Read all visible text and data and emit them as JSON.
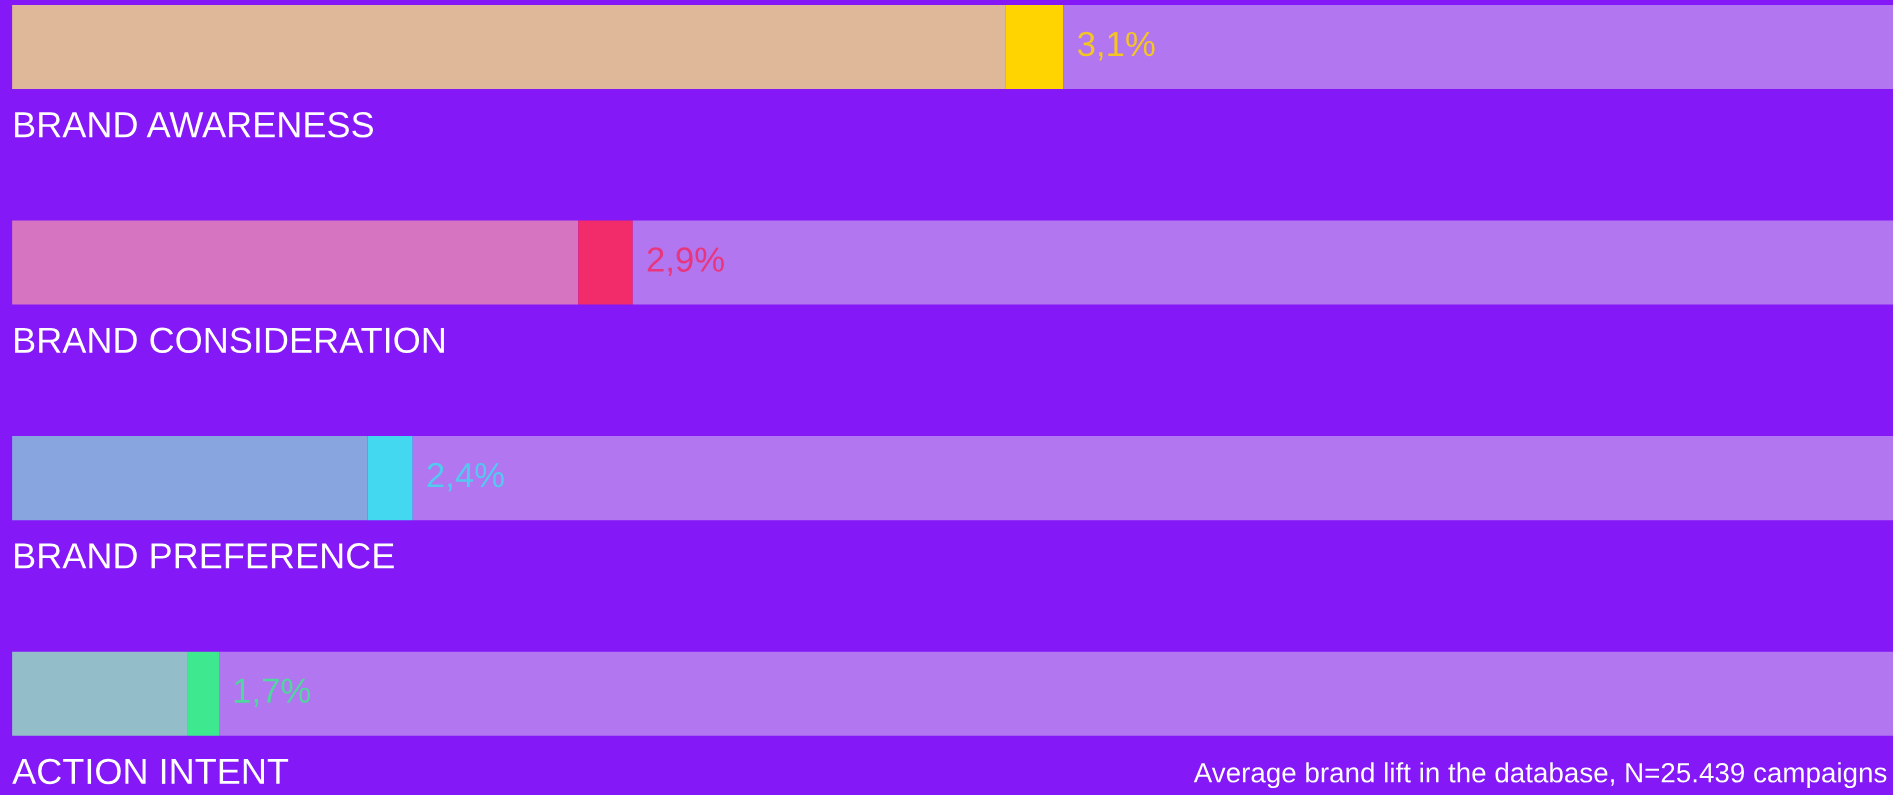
{
  "chart_data": {
    "type": "bar",
    "orientation": "horizontal",
    "stacked": true,
    "legend": false,
    "xlim": [
      0,
      100
    ],
    "categories": [
      "BRAND AWARENESS",
      "BRAND CONSIDERATION",
      "BRAND PREFERENCE",
      "ACTION INTENT"
    ],
    "series": [
      {
        "colors": [
          "#dfb89a",
          "#d674c2",
          "#89a5e0",
          "#93bdc8"
        ],
        "values": [
          52.8,
          30.1,
          18.9,
          9.3
        ]
      },
      {
        "colors": [
          "#ffd400",
          "#f22b6a",
          "#44d8f0",
          "#3ee88f"
        ],
        "values": [
          3.1,
          2.9,
          2.4,
          1.7
        ],
        "value_labels": [
          "3,1%",
          "2,9%",
          "2,4%",
          "1,7%"
        ]
      },
      {
        "color": "#b176f0",
        "values": [
          44.1,
          67.0,
          78.7,
          89.0
        ]
      }
    ],
    "annotations": [
      "Average brand lift in the database, N=25.439 campaigns"
    ]
  }
}
